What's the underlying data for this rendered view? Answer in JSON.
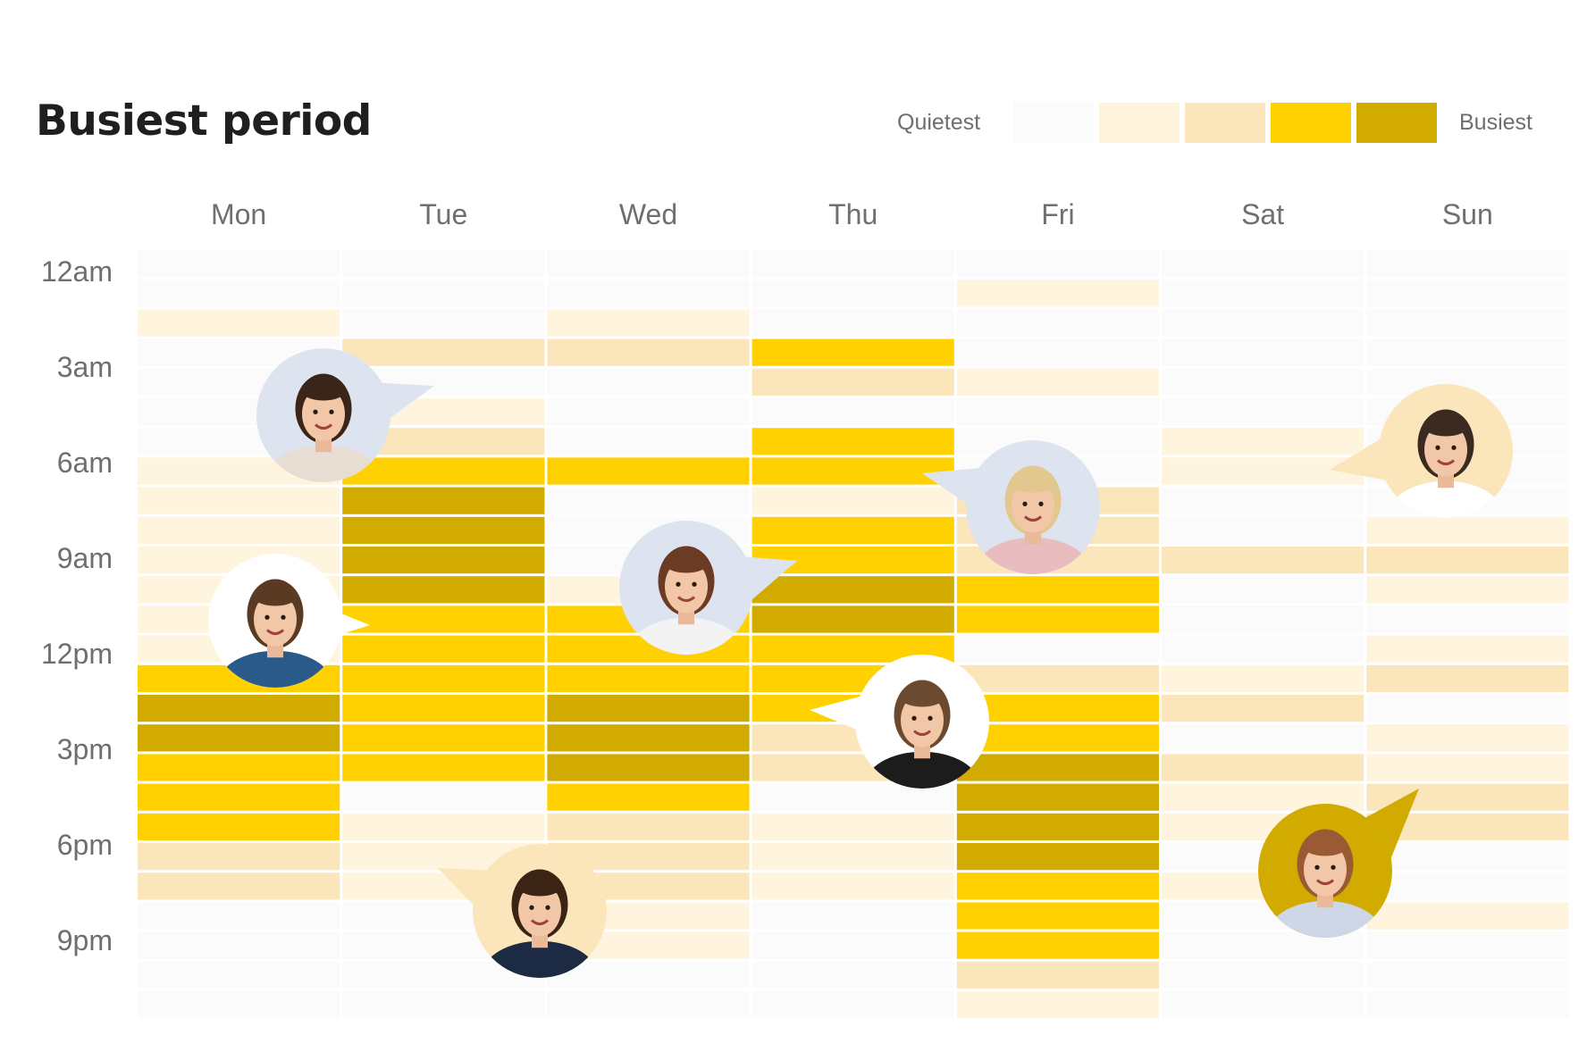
{
  "chart_data": {
    "type": "heatmap",
    "title": "Busiest period",
    "days": [
      "Mon",
      "Tue",
      "Wed",
      "Thu",
      "Fri",
      "Sat",
      "Sun"
    ],
    "hour_labels": [
      "12am",
      "3am",
      "6am",
      "9am",
      "12pm",
      "3pm",
      "6pm",
      "9pm"
    ],
    "slots_per_day": 26,
    "levels": [
      "#fbfbfb",
      "#fff4dd",
      "#fbe6bc",
      "#ffd100",
      "#d1ab00"
    ],
    "legend": {
      "low_label": "Quietest",
      "high_label": "Busiest"
    },
    "values": [
      [
        0,
        0,
        1,
        0,
        0,
        0,
        0,
        1,
        1,
        1,
        1,
        1,
        1,
        1,
        3,
        4,
        4,
        3,
        3,
        3,
        2,
        2,
        0,
        0,
        0,
        0
      ],
      [
        0,
        0,
        0,
        2,
        0,
        1,
        2,
        3,
        4,
        4,
        4,
        4,
        3,
        3,
        3,
        3,
        3,
        3,
        0,
        1,
        1,
        1,
        0,
        0,
        0,
        0
      ],
      [
        0,
        0,
        1,
        2,
        0,
        0,
        0,
        3,
        0,
        0,
        0,
        1,
        3,
        3,
        3,
        4,
        4,
        4,
        3,
        2,
        2,
        2,
        1,
        1,
        0,
        0
      ],
      [
        0,
        0,
        0,
        3,
        2,
        0,
        3,
        3,
        1,
        3,
        3,
        4,
        4,
        3,
        3,
        3,
        2,
        2,
        0,
        1,
        1,
        1,
        0,
        0,
        0,
        0
      ],
      [
        0,
        1,
        0,
        0,
        1,
        0,
        0,
        0,
        2,
        2,
        2,
        3,
        3,
        0,
        2,
        3,
        3,
        4,
        4,
        4,
        4,
        3,
        3,
        3,
        2,
        1
      ],
      [
        0,
        0,
        0,
        0,
        0,
        0,
        1,
        1,
        0,
        0,
        2,
        0,
        0,
        0,
        1,
        2,
        0,
        2,
        1,
        1,
        0,
        1,
        0,
        0,
        0,
        0
      ],
      [
        0,
        0,
        0,
        0,
        0,
        0,
        0,
        0,
        0,
        1,
        2,
        1,
        0,
        1,
        2,
        0,
        1,
        1,
        2,
        2,
        0,
        0,
        1,
        0,
        0,
        0
      ]
    ]
  },
  "avatars": [
    {
      "name": "woman-glasses",
      "bg": "#dde4f0",
      "hair": "#3b2418",
      "shirt": "#e8ddd3"
    },
    {
      "name": "man-thinking",
      "bg": "#ffffff",
      "hair": "#5a3a22",
      "shirt": "#2a5a8a"
    },
    {
      "name": "woman-saluting",
      "bg": "#dde4f0",
      "hair": "#6b3b24",
      "shirt": "#f3f3f3"
    },
    {
      "name": "woman-blonde",
      "bg": "#dde4f0",
      "hair": "#e2c78f",
      "shirt": "#e9bcc0"
    },
    {
      "name": "man-glasses",
      "bg": "#fbe6bc",
      "hair": "#3a2a20",
      "shirt": "#ffffff"
    },
    {
      "name": "man-black-shirt",
      "bg": "#ffffff",
      "hair": "#6b4a30",
      "shirt": "#1c1c1c"
    },
    {
      "name": "man-smiling",
      "bg": "#fbe6bc",
      "hair": "#3b2414",
      "shirt": "#1c2a44"
    },
    {
      "name": "woman-redhead",
      "bg": "#d1ab00",
      "hair": "#9a5a33",
      "shirt": "#cdd7e8"
    }
  ]
}
